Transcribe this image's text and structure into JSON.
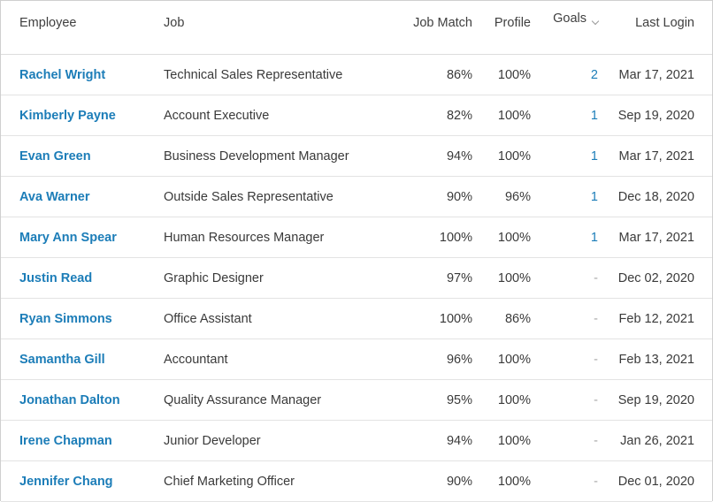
{
  "columns": {
    "employee": "Employee",
    "job": "Job",
    "job_match": "Job Match",
    "profile": "Profile",
    "goals": "Goals",
    "last_login": "Last Login"
  },
  "icons": {
    "goals_sort": "chevron-down-icon"
  },
  "colors": {
    "link": "#1c7db8",
    "muted": "#a9a9a9"
  },
  "rows": [
    {
      "employee": "Rachel Wright",
      "job": "Technical Sales Representative",
      "job_match": "86%",
      "profile": "100%",
      "goals": "2",
      "last_login": "Mar 17, 2021"
    },
    {
      "employee": "Kimberly Payne",
      "job": "Account Executive",
      "job_match": "82%",
      "profile": "100%",
      "goals": "1",
      "last_login": "Sep 19, 2020"
    },
    {
      "employee": "Evan Green",
      "job": "Business Development Manager",
      "job_match": "94%",
      "profile": "100%",
      "goals": "1",
      "last_login": "Mar 17, 2021"
    },
    {
      "employee": "Ava Warner",
      "job": "Outside Sales Representative",
      "job_match": "90%",
      "profile": "96%",
      "goals": "1",
      "last_login": "Dec 18, 2020"
    },
    {
      "employee": "Mary Ann Spear",
      "job": "Human Resources Manager",
      "job_match": "100%",
      "profile": "100%",
      "goals": "1",
      "last_login": "Mar 17, 2021"
    },
    {
      "employee": "Justin Read",
      "job": "Graphic Designer",
      "job_match": "97%",
      "profile": "100%",
      "goals": "-",
      "last_login": "Dec 02, 2020"
    },
    {
      "employee": "Ryan Simmons",
      "job": "Office Assistant",
      "job_match": "100%",
      "profile": "86%",
      "goals": "-",
      "last_login": "Feb 12, 2021"
    },
    {
      "employee": "Samantha Gill",
      "job": "Accountant",
      "job_match": "96%",
      "profile": "100%",
      "goals": "-",
      "last_login": "Feb 13, 2021"
    },
    {
      "employee": "Jonathan Dalton",
      "job": "Quality Assurance Manager",
      "job_match": "95%",
      "profile": "100%",
      "goals": "-",
      "last_login": "Sep 19, 2020"
    },
    {
      "employee": "Irene Chapman",
      "job": "Junior Developer",
      "job_match": "94%",
      "profile": "100%",
      "goals": "-",
      "last_login": "Jan 26, 2021"
    },
    {
      "employee": "Jennifer Chang",
      "job": "Chief Marketing Officer",
      "job_match": "90%",
      "profile": "100%",
      "goals": "-",
      "last_login": "Dec 01, 2020"
    }
  ]
}
